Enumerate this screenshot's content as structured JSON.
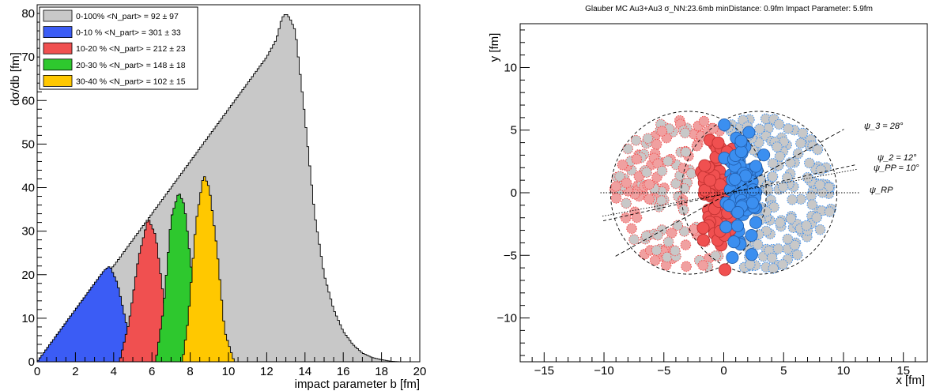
{
  "chart_data": [
    {
      "type": "area",
      "xlabel": "impact parameter b [fm]",
      "ylabel": "dσ/db [fm]",
      "xlim": [
        0,
        20
      ],
      "ylim": [
        0,
        82
      ],
      "xticks": [
        "0",
        "2",
        "4",
        "6",
        "8",
        "10",
        "12",
        "14",
        "16",
        "18",
        "20"
      ],
      "yticks": [
        "0",
        "10",
        "20",
        "30",
        "40",
        "50",
        "60",
        "70",
        "80"
      ],
      "grid": false,
      "legend_position": "top-left",
      "series": [
        {
          "name": "0-100% <N_part> = 92 ± 97",
          "color": "#c8c8c8",
          "x": [
            0,
            0.5,
            1,
            1.5,
            2,
            2.5,
            3,
            3.5,
            4,
            4.5,
            5,
            5.5,
            6,
            6.5,
            7,
            7.5,
            8,
            8.5,
            9,
            9.5,
            10,
            10.5,
            11,
            11.5,
            12,
            12.5,
            12.8,
            13,
            13.2,
            13.5,
            14,
            14.5,
            15,
            15.5,
            16,
            16.5,
            17,
            17.5,
            18,
            18.5,
            19
          ],
          "y": [
            0,
            3,
            6,
            9,
            12,
            15,
            18,
            20,
            22,
            25,
            28,
            31,
            34,
            37,
            40,
            43,
            46,
            49,
            52,
            55,
            58,
            61,
            64,
            67,
            70,
            74,
            79,
            80,
            79,
            76,
            56,
            34,
            20,
            12,
            7,
            4,
            2,
            1,
            0.5,
            0.1,
            0
          ]
        },
        {
          "name": "0-10 % <N_part> = 301 ± 33",
          "color": "#3b5cf5",
          "x": [
            0,
            0.5,
            1,
            1.5,
            2,
            2.5,
            3,
            3.5,
            3.8,
            4.2,
            4.5,
            5,
            5.5
          ],
          "y": [
            0,
            3,
            6,
            9,
            12,
            15,
            18,
            21,
            22,
            18,
            12,
            2,
            0
          ]
        },
        {
          "name": "10-20 % <N_part> = 212 ± 23",
          "color": "#f05050",
          "x": [
            4.3,
            4.8,
            5.3,
            5.8,
            6.2,
            6.6,
            7.0,
            7.3
          ],
          "y": [
            0,
            9,
            24,
            33,
            29,
            15,
            3,
            0
          ]
        },
        {
          "name": "20-30 % <N_part> = 148 ± 18",
          "color": "#2ec82e",
          "x": [
            6.2,
            6.6,
            7.0,
            7.4,
            7.7,
            8.0,
            8.4,
            8.8
          ],
          "y": [
            0,
            12,
            33,
            39,
            36,
            24,
            6,
            0
          ]
        },
        {
          "name": "30-40 % <N_part> = 102 ± 15",
          "color": "#ffc800",
          "x": [
            7.6,
            7.9,
            8.3,
            8.7,
            9.0,
            9.4,
            9.8,
            10.3
          ],
          "y": [
            0,
            10,
            32,
            43,
            40,
            26,
            7,
            0
          ]
        }
      ]
    },
    {
      "type": "scatter",
      "title": "Glauber MC Au3+Au3 σ_NN:23.6mb  minDistance: 0.9fm  Impact Parameter: 5.9fm",
      "xlabel": "x [fm]",
      "ylabel": "y [fm]",
      "xlim": [
        -17,
        17
      ],
      "ylim": [
        -13.5,
        13.5
      ],
      "xticks": [
        "−15",
        "−10",
        "−5",
        "0",
        "5",
        "10",
        "15"
      ],
      "yticks": [
        "−10",
        "−5",
        "0",
        "5",
        "10"
      ],
      "grid": false,
      "nucleus_centers": [
        -2.95,
        2.95
      ],
      "nucleus_radius": 6.5,
      "participant_colors": {
        "nucleus_a": "#f05050",
        "nucleus_b": "#3b8ff0"
      },
      "spectator_color": "#c8c8c8",
      "angle_lines": [
        {
          "label": "ψ_3 = 28°",
          "angle_deg": 28
        },
        {
          "label": "ψ_2 = 12°",
          "angle_deg": 12
        },
        {
          "label": "ψ_PP = 10°",
          "angle_deg": 10
        },
        {
          "label": "ψ_RP",
          "angle_deg": 0
        }
      ]
    }
  ]
}
